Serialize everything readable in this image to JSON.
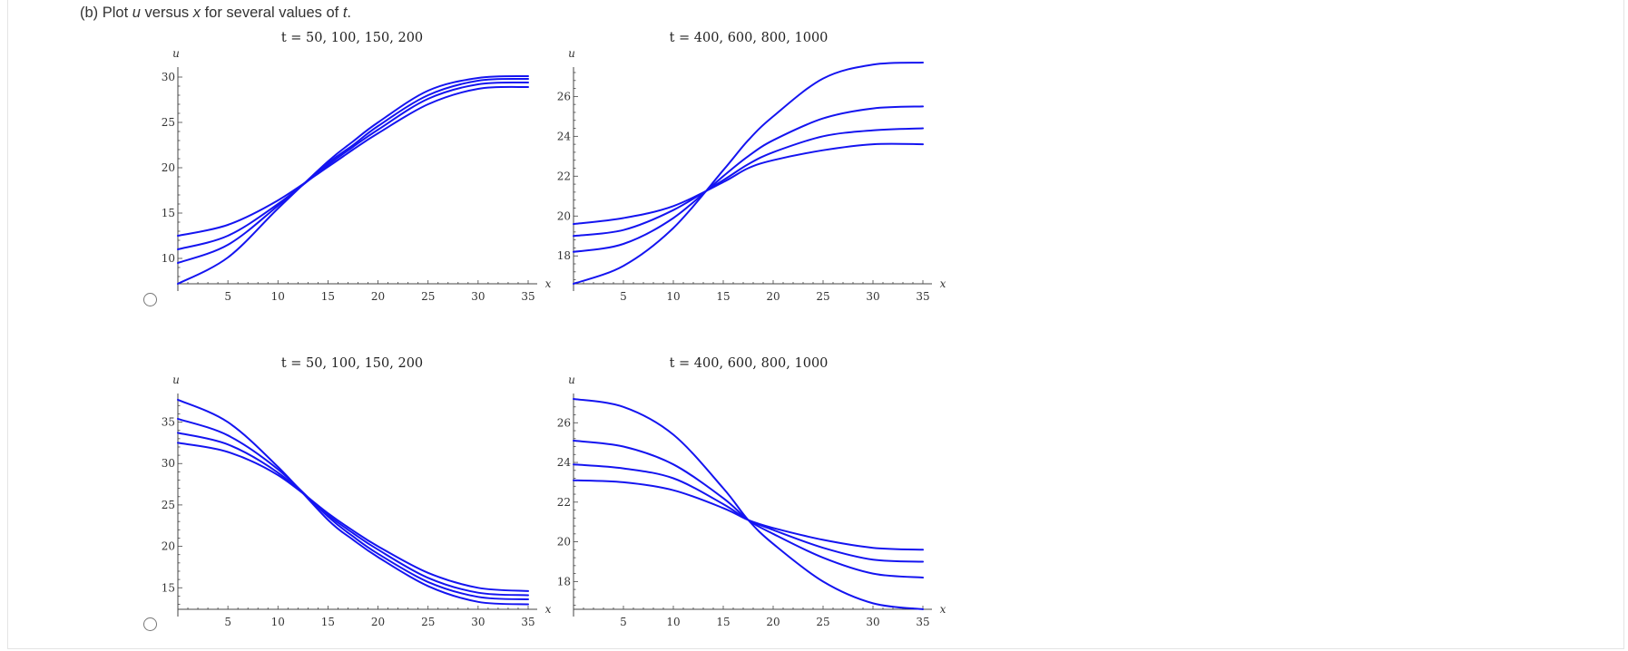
{
  "question": {
    "prefix": "(b) Plot ",
    "var_u": "u",
    "versus": " versus ",
    "var_x": "x",
    "middle": " for several values of ",
    "var_t": "t",
    "suffix": "."
  },
  "colors": {
    "curve": "#1414f0",
    "axis": "#444444",
    "tick_label": "#333333"
  },
  "options": [
    {
      "name": "option-a",
      "selected": false
    },
    {
      "name": "option-b",
      "selected": false
    }
  ],
  "chart_data": [
    {
      "type": "line",
      "option": "option-a",
      "title": "t = 50, 100, 150, 200",
      "xlabel": "x",
      "ylabel": "u",
      "xlim": [
        0,
        35
      ],
      "ylim": [
        7.2,
        30.5
      ],
      "xticks": [
        5,
        10,
        15,
        20,
        25,
        30,
        35
      ],
      "yticks": [
        10,
        15,
        20,
        25,
        30
      ],
      "series": [
        {
          "name": "t=50",
          "x": [
            0,
            5,
            10,
            15,
            17.5,
            20,
            25,
            30,
            35
          ],
          "y": [
            7.2,
            10.1,
            15.5,
            20.7,
            22.9,
            25.0,
            28.5,
            29.9,
            30.1
          ]
        },
        {
          "name": "t=100",
          "x": [
            0,
            5,
            10,
            15,
            17.5,
            20,
            25,
            30,
            35
          ],
          "y": [
            9.5,
            11.5,
            15.8,
            20.5,
            22.5,
            24.6,
            28.0,
            29.6,
            29.8
          ]
        },
        {
          "name": "t=150",
          "x": [
            0,
            5,
            10,
            15,
            17.5,
            20,
            25,
            30,
            35
          ],
          "y": [
            11.0,
            12.5,
            16.0,
            20.3,
            22.3,
            24.2,
            27.6,
            29.2,
            29.4
          ]
        },
        {
          "name": "t=200",
          "x": [
            0,
            5,
            10,
            15,
            17.5,
            20,
            25,
            30,
            35
          ],
          "y": [
            12.5,
            13.7,
            16.4,
            20.1,
            22.0,
            23.8,
            27.0,
            28.7,
            28.9
          ]
        }
      ]
    },
    {
      "type": "line",
      "option": "option-a",
      "title": "t = 400, 600, 800, 1000",
      "xlabel": "x",
      "ylabel": "u",
      "xlim": [
        0,
        35
      ],
      "ylim": [
        16.6,
        27.2
      ],
      "xticks": [
        5,
        10,
        15,
        20,
        25,
        30,
        35
      ],
      "yticks": [
        18,
        20,
        22,
        24,
        26
      ],
      "series": [
        {
          "name": "t=400",
          "x": [
            0,
            5,
            10,
            15,
            17.5,
            20,
            25,
            30,
            35
          ],
          "y": [
            16.6,
            17.5,
            19.4,
            22.3,
            23.8,
            25.0,
            26.9,
            27.6,
            27.7
          ]
        },
        {
          "name": "t=600",
          "x": [
            0,
            5,
            10,
            15,
            17.5,
            20,
            25,
            30,
            35
          ],
          "y": [
            18.2,
            18.6,
            19.9,
            22.0,
            23.0,
            23.8,
            24.9,
            25.4,
            25.5
          ]
        },
        {
          "name": "t=800",
          "x": [
            0,
            5,
            10,
            15,
            17.5,
            20,
            25,
            30,
            35
          ],
          "y": [
            19.0,
            19.3,
            20.3,
            21.8,
            22.6,
            23.2,
            24.0,
            24.3,
            24.4
          ]
        },
        {
          "name": "t=1000",
          "x": [
            0,
            5,
            10,
            15,
            17.5,
            20,
            25,
            30,
            35
          ],
          "y": [
            19.6,
            19.9,
            20.5,
            21.7,
            22.4,
            22.8,
            23.3,
            23.6,
            23.6
          ]
        }
      ]
    },
    {
      "type": "line",
      "option": "option-b",
      "title": "t = 50, 100, 150, 200",
      "xlabel": "x",
      "ylabel": "u",
      "xlim": [
        0,
        35
      ],
      "ylim": [
        12.4,
        37.8
      ],
      "xticks": [
        5,
        10,
        15,
        20,
        25,
        30,
        35
      ],
      "yticks": [
        15,
        20,
        25,
        30,
        35
      ],
      "series": [
        {
          "name": "t=50",
          "x": [
            0,
            5,
            10,
            15,
            17.5,
            20,
            25,
            30,
            35
          ],
          "y": [
            37.7,
            35.0,
            29.6,
            23.2,
            20.8,
            18.7,
            15.2,
            13.3,
            13.0
          ]
        },
        {
          "name": "t=100",
          "x": [
            0,
            5,
            10,
            15,
            17.5,
            20,
            25,
            30,
            35
          ],
          "y": [
            35.4,
            33.4,
            29.3,
            23.6,
            21.2,
            19.1,
            15.7,
            13.9,
            13.6
          ]
        },
        {
          "name": "t=150",
          "x": [
            0,
            5,
            10,
            15,
            17.5,
            20,
            25,
            30,
            35
          ],
          "y": [
            33.7,
            32.3,
            28.9,
            23.8,
            21.6,
            19.6,
            16.2,
            14.4,
            14.1
          ]
        },
        {
          "name": "t=200",
          "x": [
            0,
            5,
            10,
            15,
            17.5,
            20,
            25,
            30,
            35
          ],
          "y": [
            32.5,
            31.4,
            28.6,
            24.0,
            21.9,
            20.0,
            16.8,
            15.0,
            14.6
          ]
        }
      ]
    },
    {
      "type": "line",
      "option": "option-b",
      "title": "t = 400, 600, 800, 1000",
      "xlabel": "x",
      "ylabel": "u",
      "xlim": [
        0,
        35
      ],
      "ylim": [
        16.6,
        27.2
      ],
      "xticks": [
        5,
        10,
        15,
        20,
        25,
        30,
        35
      ],
      "yticks": [
        18,
        20,
        22,
        24,
        26
      ],
      "series": [
        {
          "name": "t=400",
          "x": [
            0,
            5,
            10,
            15,
            17.5,
            20,
            25,
            30,
            35
          ],
          "y": [
            27.2,
            26.8,
            25.4,
            22.7,
            21.1,
            19.9,
            18.0,
            16.9,
            16.6
          ]
        },
        {
          "name": "t=600",
          "x": [
            0,
            5,
            10,
            15,
            17.5,
            20,
            25,
            30,
            35
          ],
          "y": [
            25.1,
            24.8,
            23.9,
            22.2,
            21.1,
            20.4,
            19.2,
            18.4,
            18.2
          ]
        },
        {
          "name": "t=800",
          "x": [
            0,
            5,
            10,
            15,
            17.5,
            20,
            25,
            30,
            35
          ],
          "y": [
            23.9,
            23.7,
            23.2,
            21.9,
            21.1,
            20.6,
            19.7,
            19.1,
            19.0
          ]
        },
        {
          "name": "t=1000",
          "x": [
            0,
            5,
            10,
            15,
            17.5,
            20,
            25,
            30,
            35
          ],
          "y": [
            23.1,
            23.0,
            22.6,
            21.7,
            21.1,
            20.7,
            20.1,
            19.7,
            19.6
          ]
        }
      ]
    }
  ]
}
